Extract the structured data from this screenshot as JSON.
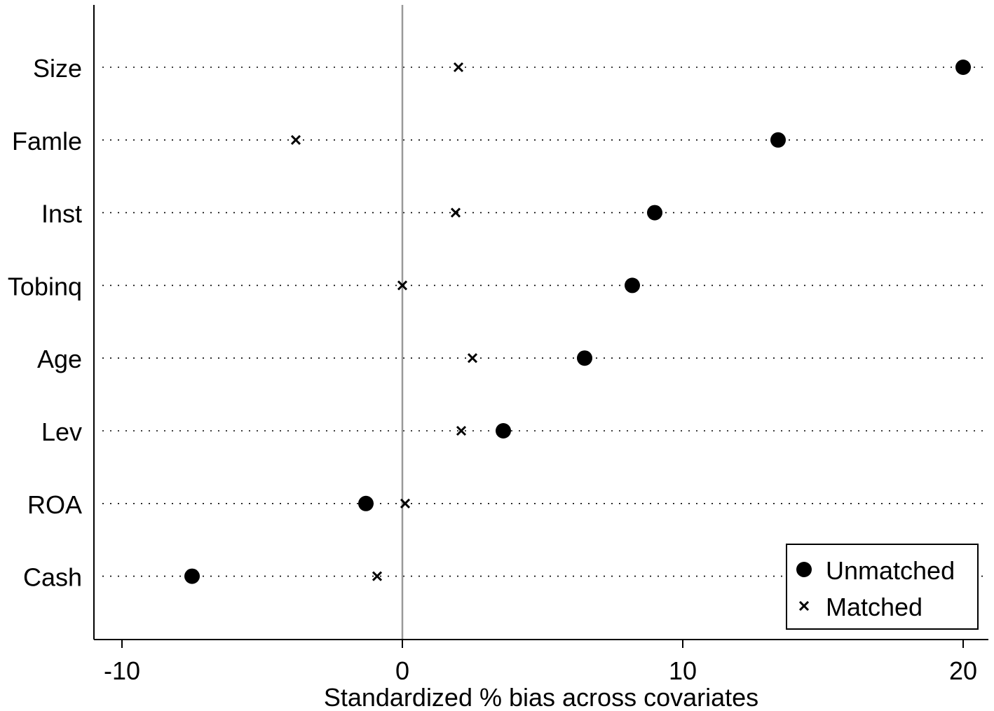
{
  "chart_data": {
    "type": "scatter",
    "xlabel": "Standardized % bias across covariates",
    "ylabel": "",
    "xlim": [
      -11,
      20.9
    ],
    "xticks": [
      -10,
      0,
      10,
      20
    ],
    "x_tick_labels": [
      "-10",
      "0",
      "10",
      "20"
    ],
    "reference_line_x": 0,
    "grid": "dotted horizontal guide line per covariate",
    "legend_placement": "bottom-right",
    "categories": [
      "Size",
      "Famle",
      "Inst",
      "Tobinq",
      "Age",
      "Lev",
      "ROA",
      "Cash"
    ],
    "series": [
      {
        "name": "Unmatched",
        "marker": "filled-circle",
        "color": "#000000",
        "values": [
          20.0,
          13.4,
          9.0,
          8.2,
          6.5,
          3.6,
          -1.3,
          -7.5
        ]
      },
      {
        "name": "Matched",
        "marker": "x",
        "color": "#000000",
        "values": [
          2.0,
          -3.8,
          1.9,
          0.0,
          2.5,
          2.1,
          0.1,
          -0.9
        ]
      }
    ]
  }
}
